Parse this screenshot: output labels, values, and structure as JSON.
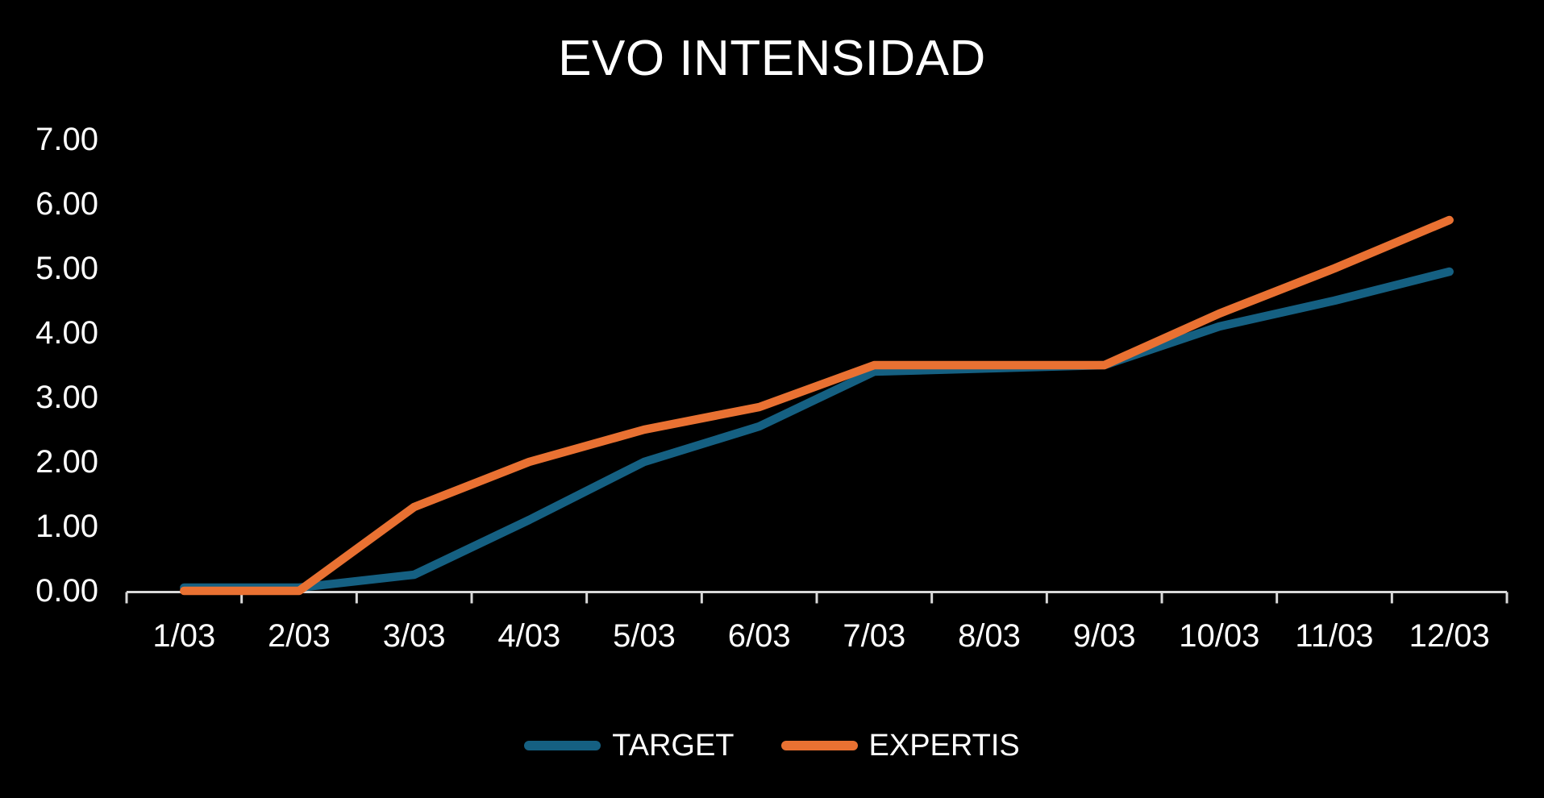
{
  "chart_data": {
    "type": "line",
    "title": "EVO INTENSIDAD",
    "categories": [
      "1/03",
      "2/03",
      "3/03",
      "4/03",
      "5/03",
      "6/03",
      "7/03",
      "8/03",
      "9/03",
      "10/03",
      "11/03",
      "12/03"
    ],
    "series": [
      {
        "name": "TARGET",
        "color": "#156082",
        "values": [
          0.05,
          0.05,
          0.25,
          1.1,
          2.0,
          2.55,
          3.4,
          3.45,
          3.5,
          4.1,
          4.5,
          4.95
        ]
      },
      {
        "name": "EXPERTIS",
        "color": "#E97132",
        "values": [
          0.0,
          0.0,
          1.3,
          2.0,
          2.5,
          2.85,
          3.5,
          3.5,
          3.5,
          4.3,
          5.0,
          5.75
        ]
      }
    ],
    "xlabel": "",
    "ylabel": "",
    "ylim": [
      0,
      7
    ],
    "y_tick_step": 1,
    "y_tick_labels": [
      "0.00",
      "1.00",
      "2.00",
      "3.00",
      "4.00",
      "5.00",
      "6.00",
      "7.00"
    ],
    "gridlines": false,
    "legend_position": "bottom",
    "background_color": "#000000",
    "text_color": "#FFFFFF",
    "axis_color": "#D9D9D9"
  }
}
